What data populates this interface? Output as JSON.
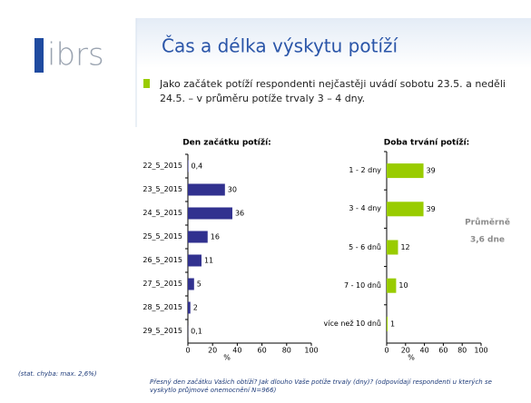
{
  "header": {
    "logo": "ibrs",
    "title": "Čas a délka výskytu potíží",
    "bullet": "Jako začátek potíží respondenti nejčastěji uvádí sobotu 23.5. a neděli 24.5. – v průměru potíže trvaly 3 – 4 dny."
  },
  "notes": {
    "error": "(stat. chyba: max. 2,6%)",
    "footnote": "Přesný den začátku Vašich obtíží? Jak dlouho Vaše potíže trvaly (dny)? (odpovídají respondenti u kterých se vyskytlo průjmové onemocnění N=966)"
  },
  "chart_data": [
    {
      "type": "hbar",
      "title": "Den začátku potíží:",
      "x_label": "%",
      "categories": [
        "22_5_2015",
        "23_5_2015",
        "24_5_2015",
        "25_5_2015",
        "26_5_2015",
        "27_5_2015",
        "28_5_2015",
        "29_5_2015"
      ],
      "values": [
        0.4,
        30,
        36,
        16,
        11,
        5,
        2,
        0.1
      ],
      "value_labels": [
        "0,4",
        "30",
        "36",
        "16",
        "11",
        "5",
        "2",
        "0,1"
      ],
      "color": "#31318f",
      "xlim": [
        0,
        100
      ],
      "xticks": [
        0,
        20,
        40,
        60,
        80,
        100
      ]
    },
    {
      "type": "hbar",
      "title": "Doba trvání potíží:",
      "x_label": "%",
      "categories": [
        "1 - 2 dny",
        "3 - 4 dny",
        "5 - 6 dnů",
        "7 - 10 dnů",
        "více než 10 dnů"
      ],
      "values": [
        39,
        39,
        12,
        10,
        1
      ],
      "color": "#99cc00",
      "xlim": [
        0,
        100
      ],
      "xticks": [
        0,
        20,
        40,
        60,
        80,
        100
      ],
      "annotations": [
        "Průměrně",
        "3,6 dne"
      ]
    }
  ]
}
